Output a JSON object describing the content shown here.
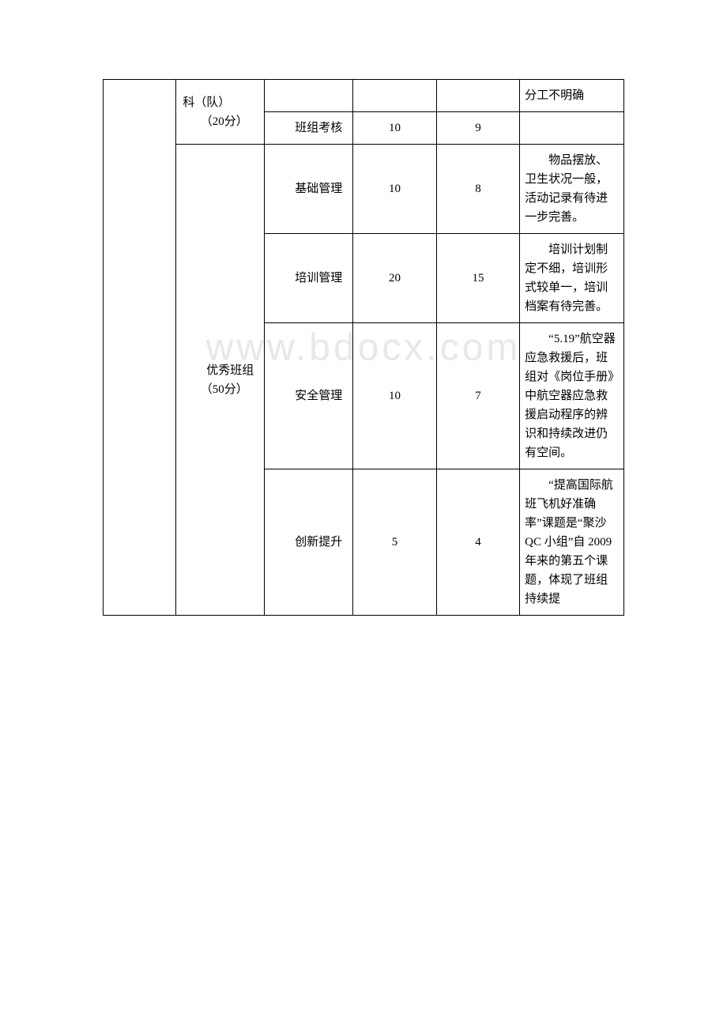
{
  "watermark": "www.bdocx.com",
  "table": {
    "rows": [
      {
        "col1": "",
        "col2": "科（队）\n　　（20分）",
        "col3": "",
        "col4": "",
        "col5": "",
        "col6": "分工不明确"
      },
      {
        "col3": "　　班组考核",
        "col4": "10",
        "col5": "9",
        "col6": ""
      },
      {
        "col2": "　　优秀班组\n　　（50分）",
        "col3": "　　基础管理",
        "col4": "10",
        "col5": "8",
        "col6": "　　物品摆放、卫生状况一般，活动记录有待进一步完善。"
      },
      {
        "col3": "　　培训管理",
        "col4": "20",
        "col5": "15",
        "col6": "　　培训计划制定不细，培训形式较单一，培训档案有待完善。"
      },
      {
        "col3": "　　安全管理",
        "col4": "10",
        "col5": "7",
        "col6": "　　“5.19”航空器应急救援后，班组对《岗位手册》中航空器应急救援启动程序的辨识和持续改进仍有空间。"
      },
      {
        "col3": "　　创新提升",
        "col4": "5",
        "col5": "4",
        "col6": "　　“提高国际航班飞机好准确率”课题是“聚沙QC 小组”自 2009 年来的第五个课题，体现了班组持续提"
      }
    ]
  }
}
